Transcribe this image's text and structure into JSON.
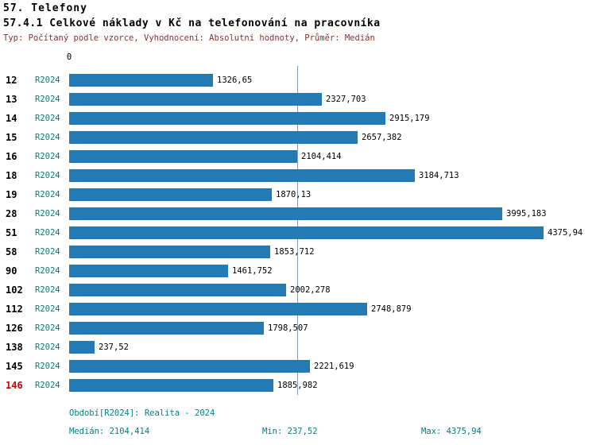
{
  "header": {
    "title_line1": "57. Telefony",
    "title_line2": "57.4.1 Celkové náklady v Kč na telefonování na pracovníka",
    "meta_line": "Typ: Počítaný podle vzorce, Vyhodnocení: Absolutní hodnoty, Průměr: Medián"
  },
  "chart_data": {
    "type": "bar",
    "orientation": "horizontal",
    "series_label": "R2024",
    "categories": [
      "12",
      "13",
      "14",
      "15",
      "16",
      "18",
      "19",
      "28",
      "51",
      "58",
      "90",
      "102",
      "112",
      "126",
      "138",
      "145",
      "146"
    ],
    "values": [
      1326.65,
      2327.703,
      2915.179,
      2657.382,
      2104.414,
      3184.713,
      1870.13,
      3995.183,
      4375.94,
      1853.712,
      1461.752,
      2002.278,
      2748.879,
      1798.507,
      237.52,
      2221.619,
      1885.982
    ],
    "value_labels": [
      "1326,65",
      "2327,703",
      "2915,179",
      "2657,382",
      "2104,414",
      "3184,713",
      "1870,13",
      "3995,183",
      "4375,94",
      "1853,712",
      "1461,752",
      "2002,278",
      "2748,879",
      "1798,507",
      "237,52",
      "2221,619",
      "1885,982"
    ],
    "highlighted_category": "146",
    "axis_ticks": [
      "0"
    ],
    "axis_origin_label": "0",
    "median_line_value": 2104.414,
    "grid": "median-line-only",
    "legend": "none",
    "bar_color": "#2579b5",
    "highlight_color": "#cc0000",
    "series_text_color": "#008080",
    "median_line_color": "#7f9fbf"
  },
  "footer": {
    "period": "Období[R2024]: Realita - 2024",
    "median": "Medián: 2104,414",
    "min": "Min: 237,52",
    "max": "Max: 4375,94"
  }
}
